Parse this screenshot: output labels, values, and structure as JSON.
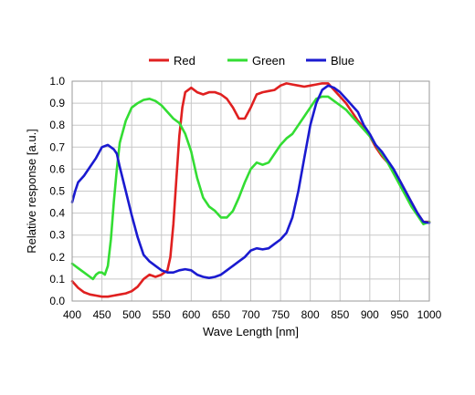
{
  "chart_data": {
    "type": "line",
    "title": "",
    "xlabel": "Wave Length [nm]",
    "ylabel": "Relative response [a.u.]",
    "xlim": [
      400,
      1000
    ],
    "ylim": [
      0,
      1.0
    ],
    "xticks": [
      400,
      450,
      500,
      550,
      600,
      650,
      700,
      750,
      800,
      850,
      900,
      950,
      1000
    ],
    "yticks": [
      0,
      0.1,
      0.2,
      0.3,
      0.4,
      0.5,
      0.6,
      0.7,
      0.8,
      0.9,
      1.0
    ],
    "xtick_labels": [
      "400",
      "450",
      "500",
      "550",
      "600",
      "650",
      "700",
      "750",
      "800",
      "850",
      "900",
      "950",
      "1000"
    ],
    "ytick_labels": [
      "0.0",
      "0.1",
      "0.2",
      "0.3",
      "0.4",
      "0.5",
      "0.6",
      "0.7",
      "0.8",
      "0.9",
      "1.0"
    ],
    "grid": true,
    "legend_position": "top",
    "series": [
      {
        "name": "Red",
        "color": "#e02020",
        "points": [
          [
            400,
            0.09
          ],
          [
            410,
            0.06
          ],
          [
            420,
            0.04
          ],
          [
            430,
            0.03
          ],
          [
            440,
            0.025
          ],
          [
            450,
            0.02
          ],
          [
            460,
            0.02
          ],
          [
            470,
            0.025
          ],
          [
            480,
            0.03
          ],
          [
            490,
            0.035
          ],
          [
            500,
            0.045
          ],
          [
            510,
            0.065
          ],
          [
            520,
            0.1
          ],
          [
            530,
            0.12
          ],
          [
            540,
            0.11
          ],
          [
            550,
            0.12
          ],
          [
            560,
            0.14
          ],
          [
            565,
            0.2
          ],
          [
            570,
            0.35
          ],
          [
            575,
            0.55
          ],
          [
            580,
            0.75
          ],
          [
            585,
            0.88
          ],
          [
            590,
            0.95
          ],
          [
            600,
            0.97
          ],
          [
            610,
            0.95
          ],
          [
            620,
            0.94
          ],
          [
            630,
            0.95
          ],
          [
            640,
            0.95
          ],
          [
            650,
            0.94
          ],
          [
            660,
            0.92
          ],
          [
            670,
            0.88
          ],
          [
            680,
            0.83
          ],
          [
            690,
            0.83
          ],
          [
            700,
            0.88
          ],
          [
            710,
            0.94
          ],
          [
            720,
            0.95
          ],
          [
            730,
            0.955
          ],
          [
            740,
            0.96
          ],
          [
            750,
            0.98
          ],
          [
            760,
            0.99
          ],
          [
            770,
            0.985
          ],
          [
            780,
            0.98
          ],
          [
            790,
            0.975
          ],
          [
            800,
            0.98
          ],
          [
            810,
            0.985
          ],
          [
            820,
            0.99
          ],
          [
            830,
            0.99
          ],
          [
            840,
            0.96
          ],
          [
            850,
            0.93
          ],
          [
            860,
            0.9
          ],
          [
            870,
            0.86
          ],
          [
            880,
            0.82
          ],
          [
            890,
            0.79
          ],
          [
            900,
            0.75
          ],
          [
            910,
            0.7
          ],
          [
            920,
            0.66
          ],
          [
            930,
            0.63
          ],
          [
            940,
            0.59
          ],
          [
            950,
            0.55
          ],
          [
            960,
            0.5
          ],
          [
            970,
            0.45
          ],
          [
            980,
            0.4
          ],
          [
            990,
            0.36
          ],
          [
            1000,
            0.36
          ]
        ]
      },
      {
        "name": "Green",
        "color": "#33dd33",
        "points": [
          [
            400,
            0.17
          ],
          [
            410,
            0.15
          ],
          [
            420,
            0.13
          ],
          [
            430,
            0.11
          ],
          [
            435,
            0.1
          ],
          [
            440,
            0.12
          ],
          [
            445,
            0.13
          ],
          [
            450,
            0.13
          ],
          [
            455,
            0.12
          ],
          [
            460,
            0.16
          ],
          [
            465,
            0.28
          ],
          [
            470,
            0.45
          ],
          [
            475,
            0.6
          ],
          [
            480,
            0.72
          ],
          [
            490,
            0.82
          ],
          [
            500,
            0.88
          ],
          [
            510,
            0.9
          ],
          [
            520,
            0.915
          ],
          [
            530,
            0.92
          ],
          [
            540,
            0.91
          ],
          [
            550,
            0.89
          ],
          [
            560,
            0.86
          ],
          [
            570,
            0.83
          ],
          [
            580,
            0.81
          ],
          [
            590,
            0.76
          ],
          [
            600,
            0.68
          ],
          [
            610,
            0.56
          ],
          [
            620,
            0.47
          ],
          [
            630,
            0.43
          ],
          [
            640,
            0.41
          ],
          [
            650,
            0.38
          ],
          [
            660,
            0.38
          ],
          [
            670,
            0.41
          ],
          [
            680,
            0.47
          ],
          [
            690,
            0.54
          ],
          [
            700,
            0.6
          ],
          [
            710,
            0.63
          ],
          [
            720,
            0.62
          ],
          [
            730,
            0.63
          ],
          [
            740,
            0.67
          ],
          [
            750,
            0.71
          ],
          [
            760,
            0.74
          ],
          [
            770,
            0.76
          ],
          [
            780,
            0.8
          ],
          [
            790,
            0.84
          ],
          [
            800,
            0.88
          ],
          [
            810,
            0.92
          ],
          [
            820,
            0.93
          ],
          [
            830,
            0.93
          ],
          [
            840,
            0.91
          ],
          [
            850,
            0.89
          ],
          [
            860,
            0.87
          ],
          [
            870,
            0.84
          ],
          [
            880,
            0.81
          ],
          [
            890,
            0.78
          ],
          [
            900,
            0.75
          ],
          [
            910,
            0.71
          ],
          [
            920,
            0.67
          ],
          [
            930,
            0.63
          ],
          [
            940,
            0.58
          ],
          [
            950,
            0.53
          ],
          [
            960,
            0.48
          ],
          [
            970,
            0.43
          ],
          [
            980,
            0.39
          ],
          [
            990,
            0.35
          ],
          [
            1000,
            0.36
          ]
        ]
      },
      {
        "name": "Blue",
        "color": "#1a1ad0",
        "points": [
          [
            400,
            0.45
          ],
          [
            405,
            0.5
          ],
          [
            410,
            0.54
          ],
          [
            420,
            0.57
          ],
          [
            430,
            0.61
          ],
          [
            440,
            0.65
          ],
          [
            450,
            0.7
          ],
          [
            460,
            0.71
          ],
          [
            470,
            0.69
          ],
          [
            475,
            0.67
          ],
          [
            480,
            0.61
          ],
          [
            490,
            0.5
          ],
          [
            500,
            0.39
          ],
          [
            510,
            0.29
          ],
          [
            520,
            0.21
          ],
          [
            530,
            0.18
          ],
          [
            540,
            0.16
          ],
          [
            550,
            0.14
          ],
          [
            560,
            0.13
          ],
          [
            570,
            0.13
          ],
          [
            580,
            0.14
          ],
          [
            590,
            0.145
          ],
          [
            600,
            0.14
          ],
          [
            610,
            0.12
          ],
          [
            620,
            0.11
          ],
          [
            630,
            0.105
          ],
          [
            640,
            0.11
          ],
          [
            650,
            0.12
          ],
          [
            660,
            0.14
          ],
          [
            670,
            0.16
          ],
          [
            680,
            0.18
          ],
          [
            690,
            0.2
          ],
          [
            700,
            0.23
          ],
          [
            710,
            0.24
          ],
          [
            720,
            0.235
          ],
          [
            730,
            0.24
          ],
          [
            740,
            0.26
          ],
          [
            750,
            0.28
          ],
          [
            760,
            0.31
          ],
          [
            770,
            0.38
          ],
          [
            780,
            0.5
          ],
          [
            790,
            0.65
          ],
          [
            800,
            0.8
          ],
          [
            810,
            0.9
          ],
          [
            820,
            0.96
          ],
          [
            830,
            0.98
          ],
          [
            840,
            0.97
          ],
          [
            850,
            0.95
          ],
          [
            860,
            0.92
          ],
          [
            870,
            0.89
          ],
          [
            880,
            0.86
          ],
          [
            890,
            0.8
          ],
          [
            900,
            0.76
          ],
          [
            910,
            0.71
          ],
          [
            920,
            0.68
          ],
          [
            930,
            0.64
          ],
          [
            940,
            0.6
          ],
          [
            950,
            0.55
          ],
          [
            960,
            0.5
          ],
          [
            970,
            0.45
          ],
          [
            980,
            0.4
          ],
          [
            990,
            0.36
          ],
          [
            1000,
            0.355
          ]
        ]
      }
    ]
  }
}
